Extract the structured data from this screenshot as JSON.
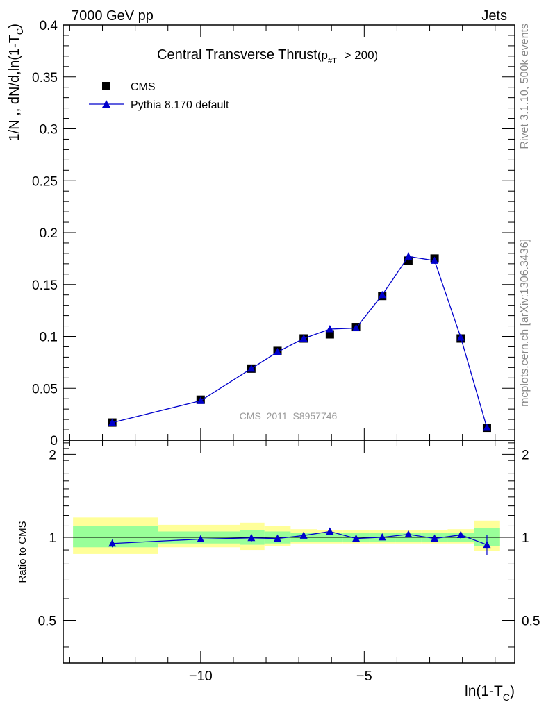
{
  "header": {
    "left": "7000 GeV pp",
    "right": "Jets"
  },
  "side_labels": {
    "rivet": "Rivet 3.1.10,  500k events",
    "mcplots": "mcplots.cern.ch [arXiv:1306.3436]"
  },
  "watermark": "CMS_2011_S8957746",
  "colors": {
    "data": "#000000",
    "mc": "#0000cc",
    "band_inner": "#99ff99",
    "band_outer": "#ffff99"
  },
  "chart_data": [
    {
      "type": "scatter",
      "panel": "main",
      "title": "Central Transverse Thrust",
      "title_cut": {
        "prefix": "(p",
        "sub": "#T",
        "suffix": " > 200)"
      },
      "ylabel": {
        "main": "1/N ,, dN/d,ln(1-T",
        "sub": "C",
        "close": ")"
      },
      "xlim": [
        -14.2,
        -0.4
      ],
      "ylim": [
        0,
        0.4
      ],
      "yticks": [
        0,
        0.05,
        0.1,
        0.15,
        0.2,
        0.25,
        0.3,
        0.35,
        0.4
      ],
      "ytick_labels": [
        "0",
        "0.05",
        "0.1",
        "0.15",
        "0.2",
        "0.25",
        "0.3",
        "0.35",
        "0.4"
      ],
      "legend": [
        {
          "name": "CMS",
          "marker": "square"
        },
        {
          "name": "Pythia 8.170 default",
          "marker": "triangle"
        }
      ],
      "legend_position": "top-left",
      "x": [
        -12.7,
        -10.0,
        -8.45,
        -7.65,
        -6.85,
        -6.05,
        -5.25,
        -4.45,
        -3.65,
        -2.85,
        -2.05,
        -1.25
      ],
      "x_edges": [
        -13.9,
        -11.3,
        -8.8,
        -8.05,
        -7.25,
        -6.45,
        -5.65,
        -4.85,
        -4.05,
        -3.25,
        -2.45,
        -1.65,
        -0.85
      ],
      "series": [
        {
          "name": "CMS",
          "values": [
            0.017,
            0.039,
            0.069,
            0.086,
            0.098,
            0.102,
            0.109,
            0.139,
            0.173,
            0.175,
            0.098,
            0.012
          ]
        },
        {
          "name": "Pythia 8.170 default",
          "values": [
            0.017,
            0.038,
            0.069,
            0.085,
            0.098,
            0.107,
            0.108,
            0.14,
            0.177,
            0.173,
            0.099,
            0.012
          ],
          "errors": [
            0.0005,
            0.0008,
            0.001,
            0.001,
            0.003,
            0.003,
            0.002,
            0.003,
            0.004,
            0.003,
            0.003,
            0.001
          ]
        }
      ]
    },
    {
      "type": "scatter",
      "panel": "ratio",
      "ylabel": "Ratio to CMS",
      "xlabel": {
        "main": "ln(1-T",
        "sub": "C",
        "close": ")"
      },
      "xlim": [
        -14.2,
        -0.4
      ],
      "ylim": [
        0.35,
        2.25
      ],
      "ylog": true,
      "yticks": [
        0.5,
        1,
        2
      ],
      "ytick_labels": [
        "0.5",
        "1",
        "2"
      ],
      "xticks": [
        -10,
        -5
      ],
      "xtick_labels": [
        "−10",
        "−5"
      ],
      "reference": 1,
      "band_inner": [
        {
          "lo": 0.92,
          "hi": 1.1
        },
        {
          "lo": 0.95,
          "hi": 1.05
        },
        {
          "lo": 0.94,
          "hi": 1.06
        },
        {
          "lo": 0.95,
          "hi": 1.05
        },
        {
          "lo": 0.96,
          "hi": 1.04
        },
        {
          "lo": 0.96,
          "hi": 1.04
        },
        {
          "lo": 0.96,
          "hi": 1.04
        },
        {
          "lo": 0.96,
          "hi": 1.04
        },
        {
          "lo": 0.96,
          "hi": 1.04
        },
        {
          "lo": 0.96,
          "hi": 1.04
        },
        {
          "lo": 0.96,
          "hi": 1.04
        },
        {
          "lo": 0.93,
          "hi": 1.08
        }
      ],
      "band_outer": [
        {
          "lo": 0.87,
          "hi": 1.18
        },
        {
          "lo": 0.92,
          "hi": 1.11
        },
        {
          "lo": 0.9,
          "hi": 1.13
        },
        {
          "lo": 0.93,
          "hi": 1.1
        },
        {
          "lo": 0.95,
          "hi": 1.07
        },
        {
          "lo": 0.95,
          "hi": 1.06
        },
        {
          "lo": 0.95,
          "hi": 1.06
        },
        {
          "lo": 0.95,
          "hi": 1.06
        },
        {
          "lo": 0.95,
          "hi": 1.06
        },
        {
          "lo": 0.95,
          "hi": 1.06
        },
        {
          "lo": 0.95,
          "hi": 1.07
        },
        {
          "lo": 0.89,
          "hi": 1.15
        }
      ],
      "series": [
        {
          "name": "Pythia 8.170 default",
          "values": [
            0.95,
            0.985,
            0.995,
            0.99,
            1.015,
            1.05,
            0.99,
            1.0,
            1.025,
            0.99,
            1.02,
            0.94
          ],
          "errors": [
            0.03,
            0.02,
            0.03,
            0.025,
            0.025,
            0.03,
            0.02,
            0.02,
            0.02,
            0.02,
            0.03,
            0.08
          ]
        }
      ]
    }
  ]
}
